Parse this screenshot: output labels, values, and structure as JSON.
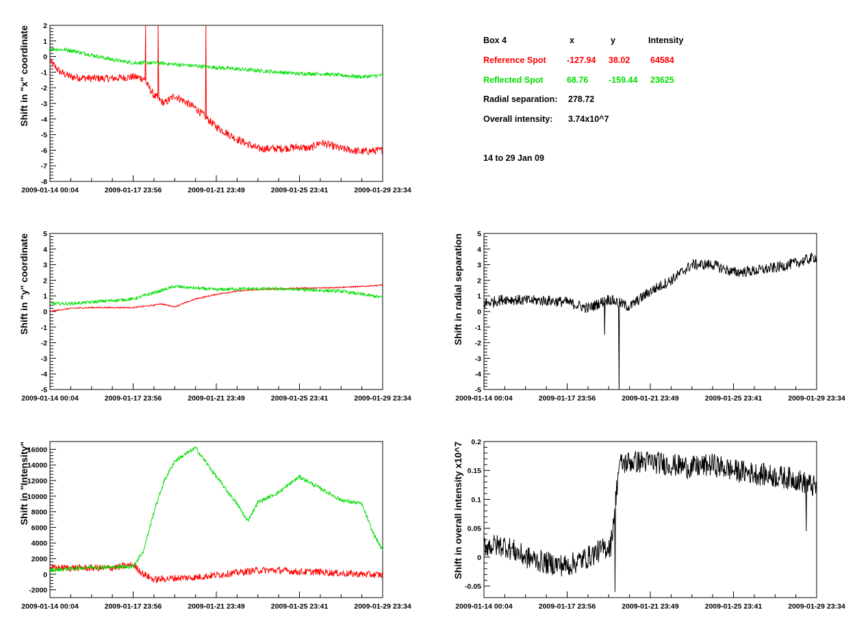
{
  "info_panel": {
    "header": {
      "box": "Box 4",
      "x": "x",
      "y": "y",
      "intensity": "Intensity"
    },
    "reference": {
      "label": "Reference Spot",
      "x": "-127.94",
      "y": "38.02",
      "intensity": "64584",
      "color": "#ff0000"
    },
    "reflected": {
      "label": "Reflected Spot",
      "x": "68.76",
      "y": "-159.44",
      "intensity": "23625",
      "color": "#00dd00"
    },
    "radial": {
      "label": "Radial separation:",
      "value": "278.72"
    },
    "overall": {
      "label": "Overall intensity:",
      "value": "3.74x10^7"
    },
    "period": "14 to 29 Jan 09"
  },
  "colors": {
    "reference": "#ff0000",
    "reflected": "#00dd00",
    "single": "#000000"
  },
  "chart_data": [
    {
      "type": "line",
      "id": "x-shift",
      "ylabel": "Shift in \"x\" coordinate",
      "xlabel": "",
      "ylim": [
        -8,
        2
      ],
      "yticks": [
        -8,
        -7,
        -6,
        -5,
        -4,
        -3,
        -2,
        -1,
        0,
        1,
        2
      ],
      "xtick_labels": [
        "2009-01-14 00:04",
        "2009-01-17 23:56",
        "2009-01-21 23:49",
        "2009-01-25 23:41",
        "2009-01-29 23:34"
      ],
      "series": [
        {
          "color": "reference",
          "points": [
            [
              0,
              -0.3
            ],
            [
              0.5,
              -1.0
            ],
            [
              1,
              -1.3
            ],
            [
              2,
              -1.4
            ],
            [
              3,
              -1.4
            ],
            [
              4,
              -1.3
            ],
            [
              4.5,
              -1.4
            ],
            [
              5,
              -2.5
            ],
            [
              5.5,
              -3.0
            ],
            [
              6,
              -2.5
            ],
            [
              7,
              -3.3
            ],
            [
              8,
              -4.5
            ],
            [
              9,
              -5.3
            ],
            [
              10,
              -5.9
            ],
            [
              11,
              -5.9
            ],
            [
              12,
              -5.8
            ],
            [
              12.5,
              -5.9
            ],
            [
              13,
              -5.5
            ],
            [
              14,
              -5.9
            ],
            [
              15,
              -6.1
            ],
            [
              16,
              -6.0
            ]
          ],
          "noise": 0.25,
          "spikes": [
            [
              4.6,
              5.2,
              1.0
            ],
            [
              5.2,
              10.5,
              1.0
            ],
            [
              7.5,
              16.0,
              1.5
            ]
          ]
        },
        {
          "color": "reflected",
          "points": [
            [
              0,
              0.5
            ],
            [
              1,
              0.4
            ],
            [
              2,
              0.1
            ],
            [
              3,
              -0.2
            ],
            [
              4,
              -0.4
            ],
            [
              5,
              -0.4
            ],
            [
              6,
              -0.5
            ],
            [
              7,
              -0.6
            ],
            [
              8,
              -0.7
            ],
            [
              9,
              -0.8
            ],
            [
              10,
              -0.9
            ],
            [
              11,
              -1.0
            ],
            [
              12,
              -1.1
            ],
            [
              13,
              -1.1
            ],
            [
              14,
              -1.2
            ],
            [
              15,
              -1.3
            ],
            [
              16,
              -1.2
            ]
          ],
          "noise": 0.12
        }
      ]
    },
    {
      "type": "line",
      "id": "y-shift",
      "ylabel": "Shift in \"y\" coordinate",
      "xlabel": "",
      "ylim": [
        -5,
        5
      ],
      "yticks": [
        -5,
        -4,
        -3,
        -2,
        -1,
        0,
        1,
        2,
        3,
        4,
        5
      ],
      "xtick_labels": [
        "2009-01-14 00:04",
        "2009-01-17 23:56",
        "2009-01-21 23:49",
        "2009-01-25 23:41",
        "2009-01-29 23:34"
      ],
      "series": [
        {
          "color": "reference",
          "points": [
            [
              0,
              0
            ],
            [
              1,
              0.2
            ],
            [
              2,
              0.25
            ],
            [
              3,
              0.25
            ],
            [
              4,
              0.25
            ],
            [
              5,
              0.4
            ],
            [
              5.3,
              0.5
            ],
            [
              6,
              0.3
            ],
            [
              7,
              0.8
            ],
            [
              8,
              1.1
            ],
            [
              9,
              1.3
            ],
            [
              10,
              1.4
            ],
            [
              11,
              1.45
            ],
            [
              12,
              1.5
            ],
            [
              13,
              1.5
            ],
            [
              14,
              1.55
            ],
            [
              15,
              1.6
            ],
            [
              16,
              1.7
            ]
          ],
          "noise": 0.04
        },
        {
          "color": "reflected",
          "points": [
            [
              0,
              0.5
            ],
            [
              1,
              0.5
            ],
            [
              2,
              0.6
            ],
            [
              3,
              0.7
            ],
            [
              4,
              0.8
            ],
            [
              5,
              1.2
            ],
            [
              6,
              1.6
            ],
            [
              7,
              1.5
            ],
            [
              8,
              1.4
            ],
            [
              9,
              1.45
            ],
            [
              10,
              1.45
            ],
            [
              11,
              1.45
            ],
            [
              12,
              1.4
            ],
            [
              13,
              1.35
            ],
            [
              14,
              1.3
            ],
            [
              15,
              1.1
            ],
            [
              16,
              0.9
            ]
          ],
          "noise": 0.1
        }
      ]
    },
    {
      "type": "line",
      "id": "radial-shift",
      "ylabel": "Shift in radial separation",
      "xlabel": "",
      "ylim": [
        -5,
        5
      ],
      "yticks": [
        -5,
        -4,
        -3,
        -2,
        -1,
        0,
        1,
        2,
        3,
        4,
        5
      ],
      "xtick_labels": [
        "2009-01-14 00:04",
        "2009-01-17 23:56",
        "2009-01-21 23:49",
        "2009-01-25 23:41",
        "2009-01-29 23:34"
      ],
      "series": [
        {
          "color": "single",
          "points": [
            [
              0,
              0.5
            ],
            [
              1,
              0.8
            ],
            [
              2,
              0.7
            ],
            [
              3,
              0.7
            ],
            [
              4,
              0.6
            ],
            [
              5,
              0.2
            ],
            [
              5.5,
              0.5
            ],
            [
              6,
              0.8
            ],
            [
              7,
              0.3
            ],
            [
              8,
              1.3
            ],
            [
              9,
              2.0
            ],
            [
              10,
              3.0
            ],
            [
              11,
              3.0
            ],
            [
              12,
              2.5
            ],
            [
              13,
              2.6
            ],
            [
              14,
              2.8
            ],
            [
              15,
              3.1
            ],
            [
              16,
              3.5
            ]
          ],
          "noise": 0.35,
          "spikes": [
            [
              6.5,
              -5.0,
              1.0
            ],
            [
              5.8,
              -1.5,
              1.0
            ]
          ]
        }
      ]
    },
    {
      "type": "line",
      "id": "intensity-shift",
      "ylabel": "Shift in \"Intensity\"",
      "xlabel": "",
      "ylim": [
        -3000,
        17000
      ],
      "yticks": [
        -2000,
        0,
        2000,
        4000,
        6000,
        8000,
        10000,
        12000,
        14000,
        16000
      ],
      "xtick_labels": [
        "2009-01-14 00:04",
        "2009-01-17 23:56",
        "2009-01-21 23:49",
        "2009-01-25 23:41",
        "2009-01-29 23:34"
      ],
      "series": [
        {
          "color": "reference",
          "points": [
            [
              0,
              800
            ],
            [
              2,
              800
            ],
            [
              3,
              800
            ],
            [
              4,
              1200
            ],
            [
              4.5,
              0
            ],
            [
              5,
              -700
            ],
            [
              6,
              -500
            ],
            [
              7,
              -400
            ],
            [
              8,
              -100
            ],
            [
              9,
              200
            ],
            [
              10,
              500
            ],
            [
              11,
              500
            ],
            [
              12,
              300
            ],
            [
              13,
              300
            ],
            [
              14,
              100
            ],
            [
              15,
              0
            ],
            [
              16,
              -100
            ]
          ],
          "noise": 450
        },
        {
          "color": "reflected",
          "points": [
            [
              0,
              500
            ],
            [
              1,
              700
            ],
            [
              2,
              900
            ],
            [
              3,
              900
            ],
            [
              4,
              1000
            ],
            [
              4.5,
              3000
            ],
            [
              5,
              8000
            ],
            [
              5.5,
              12000
            ],
            [
              6,
              14500
            ],
            [
              7,
              16200
            ],
            [
              8,
              12500
            ],
            [
              9,
              9000
            ],
            [
              9.5,
              6800
            ],
            [
              10,
              9200
            ],
            [
              11,
              10500
            ],
            [
              12,
              12500
            ],
            [
              13,
              11000
            ],
            [
              14,
              9500
            ],
            [
              15,
              9000
            ],
            [
              15.5,
              5500
            ],
            [
              16,
              3000
            ]
          ],
          "noise": 250
        }
      ]
    },
    {
      "type": "line",
      "id": "overall-intensity-shift",
      "ylabel": "Shift in overall intensity x10^7",
      "xlabel": "",
      "ylim": [
        -0.07,
        0.2
      ],
      "yticks": [
        -0.05,
        0,
        0.05,
        0.1,
        0.15,
        0.2
      ],
      "xtick_labels": [
        "2009-01-14 00:04",
        "2009-01-17 23:56",
        "2009-01-21 23:49",
        "2009-01-25 23:41",
        "2009-01-29 23:34"
      ],
      "series": [
        {
          "color": "single",
          "points": [
            [
              0,
              0.02
            ],
            [
              1,
              0.02
            ],
            [
              2,
              0.0
            ],
            [
              3,
              -0.01
            ],
            [
              4,
              -0.015
            ],
            [
              5,
              0.0
            ],
            [
              5.5,
              0.01
            ],
            [
              6.1,
              0.02
            ],
            [
              6.5,
              0.16
            ],
            [
              7,
              0.165
            ],
            [
              8,
              0.165
            ],
            [
              9,
              0.16
            ],
            [
              10,
              0.155
            ],
            [
              11,
              0.16
            ],
            [
              12,
              0.15
            ],
            [
              13,
              0.145
            ],
            [
              14,
              0.14
            ],
            [
              15,
              0.135
            ],
            [
              16,
              0.12
            ]
          ],
          "noise": 0.02,
          "spikes": [
            [
              6.3,
              -0.06,
              1.0
            ],
            [
              15.5,
              0.045,
              1.0
            ]
          ]
        }
      ]
    }
  ]
}
